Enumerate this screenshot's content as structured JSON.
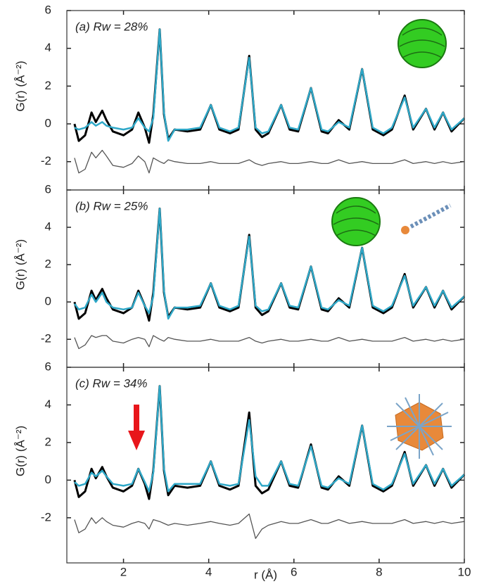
{
  "chart_data": [
    {
      "type": "line",
      "panel_label": "(a) Rw = 28%",
      "ylabel": "G(r) (Å⁻²)",
      "x": [
        0.85,
        0.95,
        1.1,
        1.25,
        1.35,
        1.5,
        1.6,
        1.75,
        2.0,
        2.2,
        2.35,
        2.5,
        2.6,
        2.7,
        2.85,
        2.95,
        3.05,
        3.2,
        3.5,
        3.8,
        4.05,
        4.25,
        4.5,
        4.7,
        4.95,
        5.1,
        5.25,
        5.4,
        5.7,
        5.9,
        6.1,
        6.4,
        6.65,
        6.8,
        7.05,
        7.3,
        7.6,
        7.85,
        8.1,
        8.3,
        8.6,
        8.8,
        9.1,
        9.3,
        9.5,
        9.7,
        10.0
      ],
      "series": [
        {
          "color": "#000000",
          "values": [
            0,
            -0.9,
            -0.6,
            0.6,
            0.1,
            0.7,
            0.2,
            -0.4,
            -0.6,
            -0.3,
            0.6,
            -0.2,
            -1.0,
            0.5,
            5.0,
            0.5,
            -0.8,
            -0.3,
            -0.4,
            -0.3,
            1.0,
            -0.3,
            -0.5,
            -0.3,
            3.6,
            -0.3,
            -0.7,
            -0.5,
            1.0,
            -0.3,
            -0.4,
            1.9,
            -0.4,
            -0.5,
            0.2,
            -0.3,
            2.9,
            -0.3,
            -0.6,
            -0.3,
            1.5,
            -0.3,
            0.8,
            -0.3,
            0.6,
            -0.4,
            0.3
          ]
        },
        {
          "color": "#2fa8c8",
          "values": [
            -0.2,
            -0.3,
            -0.2,
            0.1,
            -0.1,
            0.1,
            -0.1,
            -0.2,
            -0.3,
            -0.2,
            0.3,
            -0.2,
            -0.4,
            0.3,
            5.0,
            0.6,
            -0.9,
            -0.3,
            -0.3,
            -0.2,
            1.0,
            -0.2,
            -0.4,
            -0.2,
            3.5,
            -0.2,
            -0.5,
            -0.4,
            1.0,
            -0.2,
            -0.3,
            1.9,
            -0.3,
            -0.4,
            0.1,
            -0.2,
            2.9,
            -0.2,
            -0.5,
            -0.2,
            1.4,
            -0.2,
            0.8,
            -0.2,
            0.6,
            -0.3,
            0.3
          ]
        },
        {
          "color": "#555555",
          "values": [
            -1.8,
            -2.6,
            -2.4,
            -1.5,
            -1.8,
            -1.4,
            -1.7,
            -2.2,
            -2.3,
            -2.1,
            -1.7,
            -2.0,
            -2.6,
            -1.8,
            -2.0,
            -2.1,
            -1.9,
            -2.0,
            -2.1,
            -2.1,
            -2.0,
            -2.1,
            -2.1,
            -2.1,
            -1.9,
            -2.1,
            -2.2,
            -2.1,
            -2.0,
            -2.1,
            -2.1,
            -2.0,
            -2.1,
            -2.1,
            -1.9,
            -2.1,
            -2.0,
            -2.1,
            -2.1,
            -2.1,
            -1.9,
            -2.1,
            -2.0,
            -2.1,
            -2.0,
            -2.1,
            -2.0
          ]
        }
      ],
      "xlim": [
        0.67,
        10
      ],
      "xticks": [
        2,
        4,
        6,
        8,
        10
      ],
      "ylim": [
        -3.5,
        6
      ],
      "yticks": [
        -2,
        0,
        2,
        4,
        6
      ]
    },
    {
      "type": "line",
      "panel_label": "(b) Rw = 25%",
      "ylabel": "G(r) (Å⁻²)",
      "x": [
        0.85,
        0.95,
        1.1,
        1.25,
        1.35,
        1.5,
        1.6,
        1.75,
        2.0,
        2.2,
        2.35,
        2.5,
        2.6,
        2.7,
        2.85,
        2.95,
        3.05,
        3.2,
        3.5,
        3.8,
        4.05,
        4.25,
        4.5,
        4.7,
        4.95,
        5.1,
        5.25,
        5.4,
        5.7,
        5.9,
        6.1,
        6.4,
        6.65,
        6.8,
        7.05,
        7.3,
        7.6,
        7.85,
        8.1,
        8.3,
        8.6,
        8.8,
        9.1,
        9.3,
        9.5,
        9.7,
        10.0
      ],
      "series": [
        {
          "color": "#000000",
          "values": [
            0,
            -0.9,
            -0.6,
            0.6,
            0.1,
            0.7,
            0.2,
            -0.4,
            -0.6,
            -0.3,
            0.6,
            -0.2,
            -1.0,
            0.5,
            5.0,
            0.5,
            -0.8,
            -0.3,
            -0.4,
            -0.3,
            1.0,
            -0.3,
            -0.5,
            -0.3,
            3.6,
            -0.3,
            -0.7,
            -0.5,
            1.0,
            -0.3,
            -0.4,
            1.9,
            -0.4,
            -0.5,
            0.2,
            -0.3,
            2.9,
            -0.3,
            -0.6,
            -0.3,
            1.5,
            -0.3,
            0.8,
            -0.3,
            0.6,
            -0.4,
            0.3
          ]
        },
        {
          "color": "#2fa8c8",
          "values": [
            -0.1,
            -0.4,
            -0.3,
            0.4,
            0.0,
            0.5,
            0.0,
            -0.3,
            -0.4,
            -0.3,
            0.5,
            -0.2,
            -0.6,
            0.3,
            5.0,
            0.6,
            -0.9,
            -0.3,
            -0.3,
            -0.2,
            1.0,
            -0.2,
            -0.4,
            -0.2,
            3.5,
            -0.2,
            -0.5,
            -0.4,
            1.0,
            -0.2,
            -0.3,
            1.9,
            -0.3,
            -0.4,
            0.1,
            -0.2,
            2.9,
            -0.2,
            -0.5,
            -0.2,
            1.4,
            -0.2,
            0.8,
            -0.2,
            0.6,
            -0.3,
            0.3
          ]
        },
        {
          "color": "#555555",
          "values": [
            -1.9,
            -2.5,
            -2.3,
            -1.8,
            -1.9,
            -1.8,
            -1.8,
            -2.1,
            -2.2,
            -2.0,
            -1.9,
            -2.0,
            -2.4,
            -1.8,
            -2.0,
            -2.1,
            -1.9,
            -2.0,
            -2.1,
            -2.1,
            -2.0,
            -2.1,
            -2.1,
            -2.1,
            -1.9,
            -2.1,
            -2.2,
            -2.1,
            -2.0,
            -2.1,
            -2.1,
            -2.0,
            -2.1,
            -2.1,
            -1.9,
            -2.1,
            -2.0,
            -2.1,
            -2.1,
            -2.1,
            -1.9,
            -2.1,
            -2.0,
            -2.1,
            -2.0,
            -2.1,
            -2.0
          ]
        }
      ],
      "xlim": [
        0.67,
        10
      ],
      "xticks": [
        2,
        4,
        6,
        8,
        10
      ],
      "ylim": [
        -3.5,
        6
      ],
      "yticks": [
        -2,
        0,
        2,
        4,
        6
      ]
    },
    {
      "type": "line",
      "panel_label": "(c) Rw = 34%",
      "ylabel": "G(r) (Å⁻²)",
      "xlabel": "r (Å)",
      "x": [
        0.85,
        0.95,
        1.1,
        1.25,
        1.35,
        1.5,
        1.6,
        1.75,
        2.0,
        2.2,
        2.35,
        2.5,
        2.6,
        2.7,
        2.85,
        2.95,
        3.05,
        3.2,
        3.5,
        3.8,
        4.05,
        4.25,
        4.5,
        4.7,
        4.95,
        5.1,
        5.25,
        5.4,
        5.7,
        5.9,
        6.1,
        6.4,
        6.65,
        6.8,
        7.05,
        7.3,
        7.6,
        7.85,
        8.1,
        8.3,
        8.6,
        8.8,
        9.1,
        9.3,
        9.5,
        9.7,
        10.0
      ],
      "series": [
        {
          "color": "#000000",
          "values": [
            0,
            -0.9,
            -0.6,
            0.6,
            0.1,
            0.7,
            0.2,
            -0.4,
            -0.6,
            -0.3,
            0.6,
            -0.2,
            -1.0,
            0.5,
            5.0,
            0.5,
            -0.8,
            -0.3,
            -0.4,
            -0.3,
            1.0,
            -0.3,
            -0.5,
            -0.3,
            3.6,
            -0.3,
            -0.7,
            -0.5,
            1.0,
            -0.3,
            -0.4,
            1.9,
            -0.4,
            -0.5,
            0.2,
            -0.3,
            2.9,
            -0.3,
            -0.6,
            -0.3,
            1.5,
            -0.3,
            0.8,
            -0.3,
            0.6,
            -0.4,
            0.3
          ]
        },
        {
          "color": "#2fa8c8",
          "values": [
            -0.1,
            -0.3,
            -0.2,
            0.4,
            0.2,
            0.5,
            0.2,
            -0.2,
            -0.3,
            -0.2,
            0.6,
            -0.1,
            -0.6,
            0.4,
            5.0,
            0.6,
            -0.6,
            -0.2,
            -0.2,
            -0.2,
            1.0,
            -0.2,
            -0.3,
            -0.2,
            3.2,
            0.2,
            -0.3,
            -0.3,
            1.0,
            -0.2,
            -0.3,
            1.8,
            -0.3,
            -0.4,
            0.1,
            -0.2,
            2.9,
            -0.2,
            -0.5,
            -0.2,
            1.4,
            -0.2,
            0.8,
            -0.2,
            0.6,
            -0.3,
            0.3
          ]
        },
        {
          "color": "#555555",
          "values": [
            -2.1,
            -2.8,
            -2.6,
            -2.0,
            -2.3,
            -2.0,
            -2.2,
            -2.4,
            -2.5,
            -2.3,
            -2.2,
            -2.3,
            -2.6,
            -2.1,
            -2.2,
            -2.3,
            -2.4,
            -2.3,
            -2.4,
            -2.3,
            -2.2,
            -2.3,
            -2.4,
            -2.3,
            -1.8,
            -3.1,
            -2.6,
            -2.4,
            -2.2,
            -2.3,
            -2.3,
            -2.1,
            -2.3,
            -2.3,
            -2.1,
            -2.3,
            -2.2,
            -2.3,
            -2.3,
            -2.3,
            -2.1,
            -2.3,
            -2.2,
            -2.3,
            -2.2,
            -2.3,
            -2.2
          ]
        }
      ],
      "xlim": [
        0.67,
        10
      ],
      "xticks": [
        2,
        4,
        6,
        8,
        10
      ],
      "ylim": [
        -4.4,
        6
      ],
      "yticks": [
        -2,
        0,
        2,
        4,
        6
      ]
    }
  ]
}
